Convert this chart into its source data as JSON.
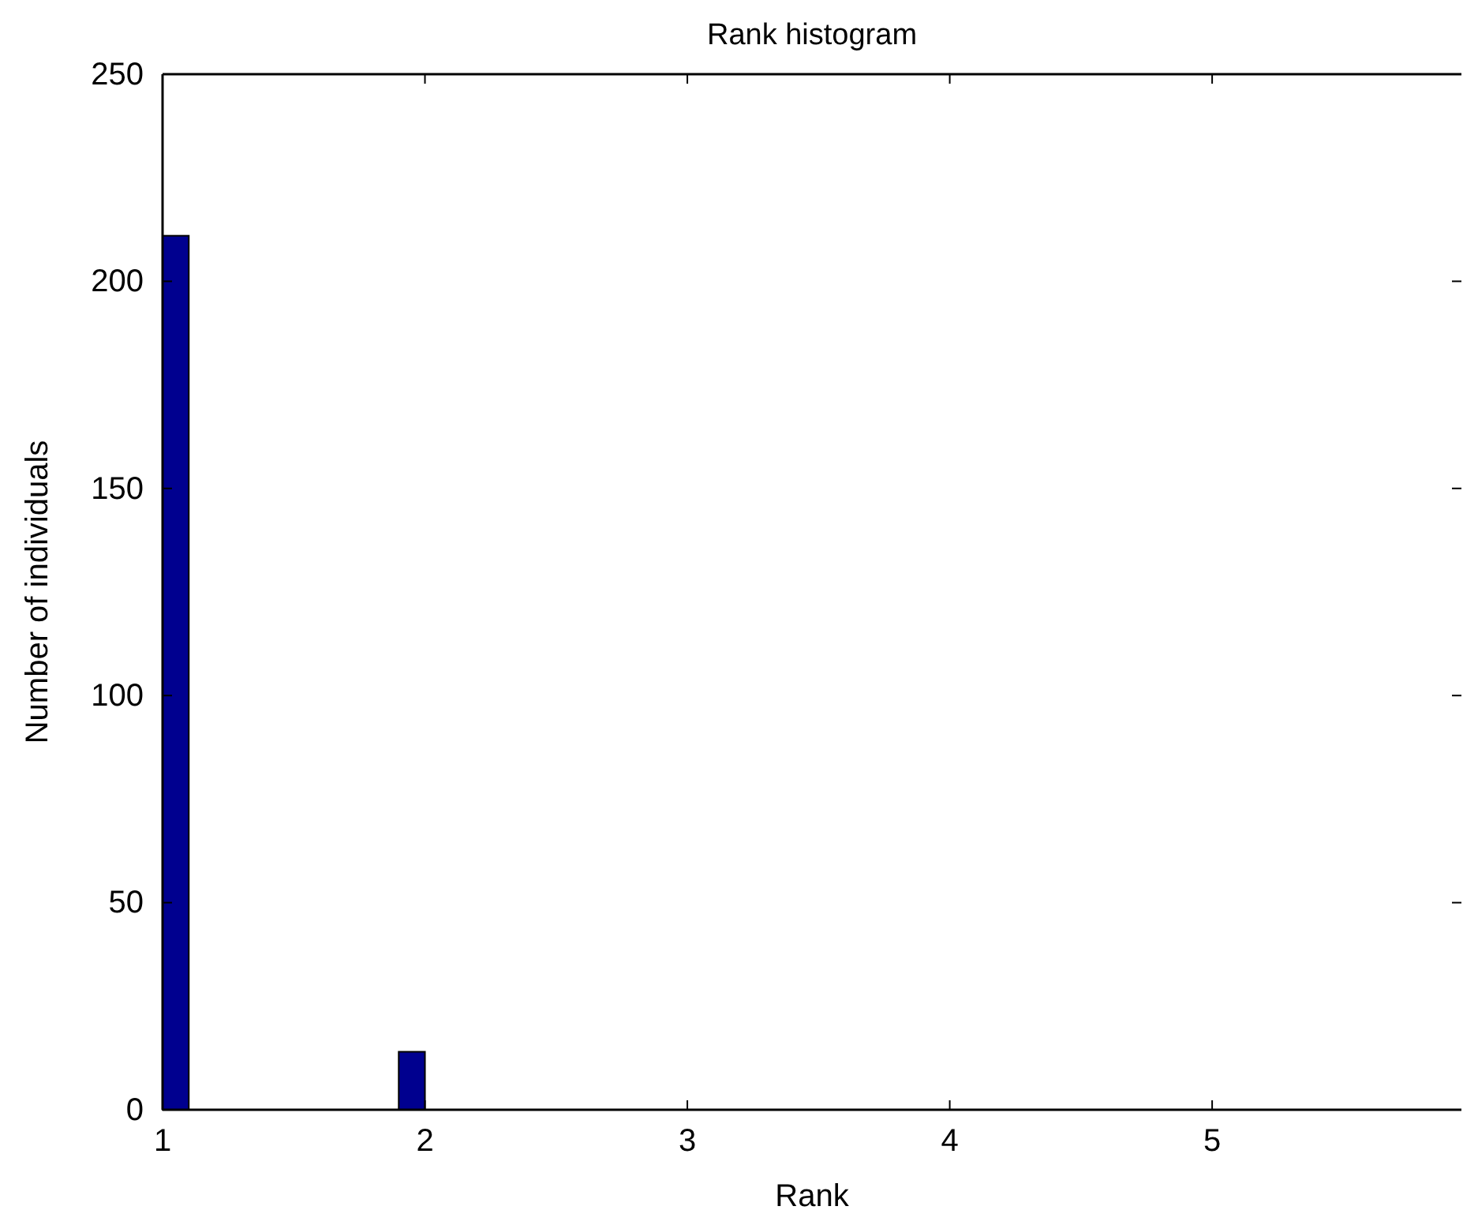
{
  "chart_data": {
    "type": "histogram",
    "title": "Rank histogram",
    "xlabel": "Rank",
    "ylabel": "Number of individuals",
    "bins": [
      1,
      1.1,
      1.2,
      1.3,
      1.4,
      1.5,
      1.6,
      1.7,
      1.8,
      1.9,
      2.0
    ],
    "values": [
      211,
      0,
      0,
      0,
      0,
      0,
      0,
      0,
      0,
      14
    ],
    "color": "#00008f",
    "xlim": [
      1,
      5.95
    ],
    "xticks": [
      1,
      2,
      3,
      4,
      5
    ],
    "ylim": [
      0,
      250
    ],
    "yticks": [
      0,
      50,
      100,
      150,
      200,
      250
    ],
    "grid": false
  }
}
